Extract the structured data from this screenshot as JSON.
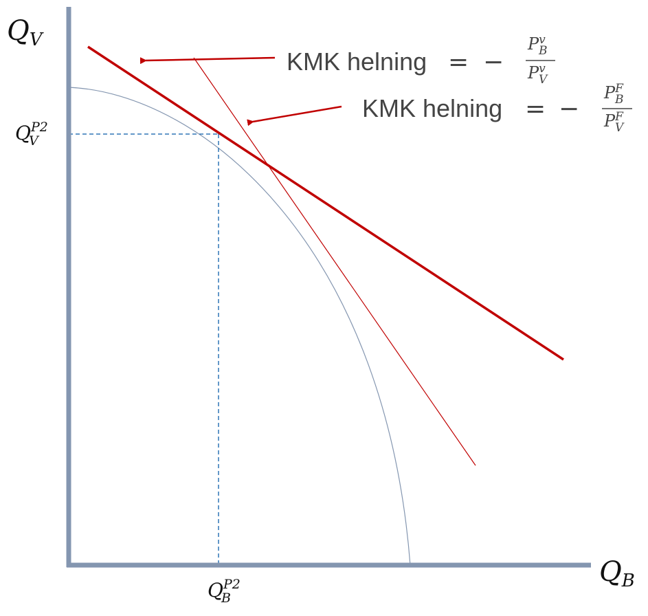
{
  "axes": {
    "y_label": {
      "main": "Q",
      "sub": "V"
    },
    "x_label": {
      "main": "Q",
      "sub": "B"
    },
    "color": "#8496b0"
  },
  "ticks": {
    "y_tick": {
      "main": "Q",
      "sub": "V",
      "sup": "P2"
    },
    "x_tick": {
      "main": "Q",
      "sub": "B",
      "sup": "P2"
    }
  },
  "annotations": [
    {
      "text": "KMK helning",
      "equals": "=",
      "minus": "−",
      "numerator": {
        "main": "P",
        "sub": "B",
        "sup": "v"
      },
      "denominator": {
        "main": "P",
        "sub": "V",
        "sup": "v"
      }
    },
    {
      "text": "KMK helning",
      "equals": "=",
      "minus": "−",
      "numerator": {
        "main": "P",
        "sub": "B",
        "sup": "F"
      },
      "denominator": {
        "main": "P",
        "sub": "V",
        "sup": "F"
      }
    }
  ],
  "colors": {
    "thick_line": "#c00000",
    "thin_line": "#c00000",
    "curve": "#8496b0",
    "dashed": "#2e75b6",
    "arrow": "#c00000"
  }
}
